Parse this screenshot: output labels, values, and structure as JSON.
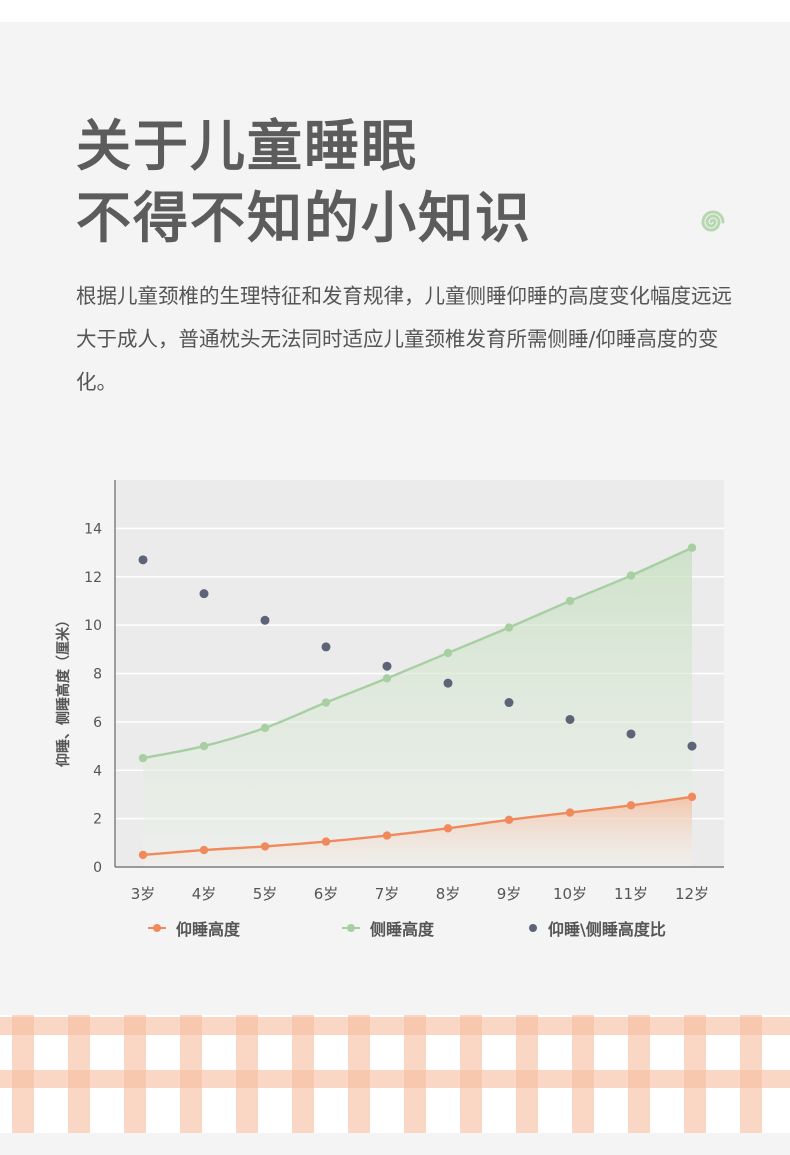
{
  "colors": {
    "title": "#5c5c5c",
    "text": "#555555",
    "orange": "#f08a5d",
    "green": "#a7cfa2",
    "dot": "#5e6477",
    "plaid": "#f6bfa0"
  },
  "header": {
    "title_line1": "关于儿童睡眠",
    "title_line2": "不得不知的小知识",
    "decor_icon": "swirl-icon"
  },
  "description": "根据儿童颈椎的生理特征和发育规律，儿童侧睡仰睡的高度变化幅度远远大于成人，普通枕头无法同时适应儿童颈椎发育所需侧睡/仰睡高度的变化。",
  "chart_data": {
    "type": "line",
    "ylabel": "仰睡、侧睡高度（厘米）",
    "xlabel": "",
    "categories": [
      "3岁",
      "4岁",
      "5岁",
      "6岁",
      "7岁",
      "8岁",
      "9岁",
      "10岁",
      "11岁",
      "12岁"
    ],
    "ylim": [
      0,
      16
    ],
    "yticks": [
      0,
      2,
      4,
      6,
      8,
      10,
      12,
      14
    ],
    "grid": true,
    "legend_position": "bottom",
    "series": [
      {
        "name": "仰睡高度",
        "kind": "area-line",
        "color": "#f08a5d",
        "values": [
          0.5,
          0.7,
          0.85,
          1.05,
          1.3,
          1.6,
          1.95,
          2.25,
          2.55,
          2.9
        ]
      },
      {
        "name": "侧睡高度",
        "kind": "area-line",
        "color": "#a7cfa2",
        "values": [
          4.5,
          5.0,
          5.75,
          6.8,
          7.8,
          8.85,
          9.9,
          11.0,
          12.05,
          13.2
        ]
      },
      {
        "name": "仰睡\\侧睡高度比",
        "kind": "scatter",
        "color": "#5e6477",
        "points": [
          {
            "x": "3岁",
            "y": 12.7
          },
          {
            "x": "4岁",
            "y": 11.3
          },
          {
            "x": "5岁",
            "y": 10.2
          },
          {
            "x": "6岁",
            "y": 9.1
          },
          {
            "x": "7岁",
            "y": 8.3
          },
          {
            "x": "8岁",
            "y": 7.6
          },
          {
            "x": "9岁",
            "y": 6.8
          },
          {
            "x": "10岁",
            "y": 6.1
          },
          {
            "x": "11岁",
            "y": 5.5
          },
          {
            "x": "12岁",
            "y": 5.0
          }
        ]
      }
    ]
  }
}
